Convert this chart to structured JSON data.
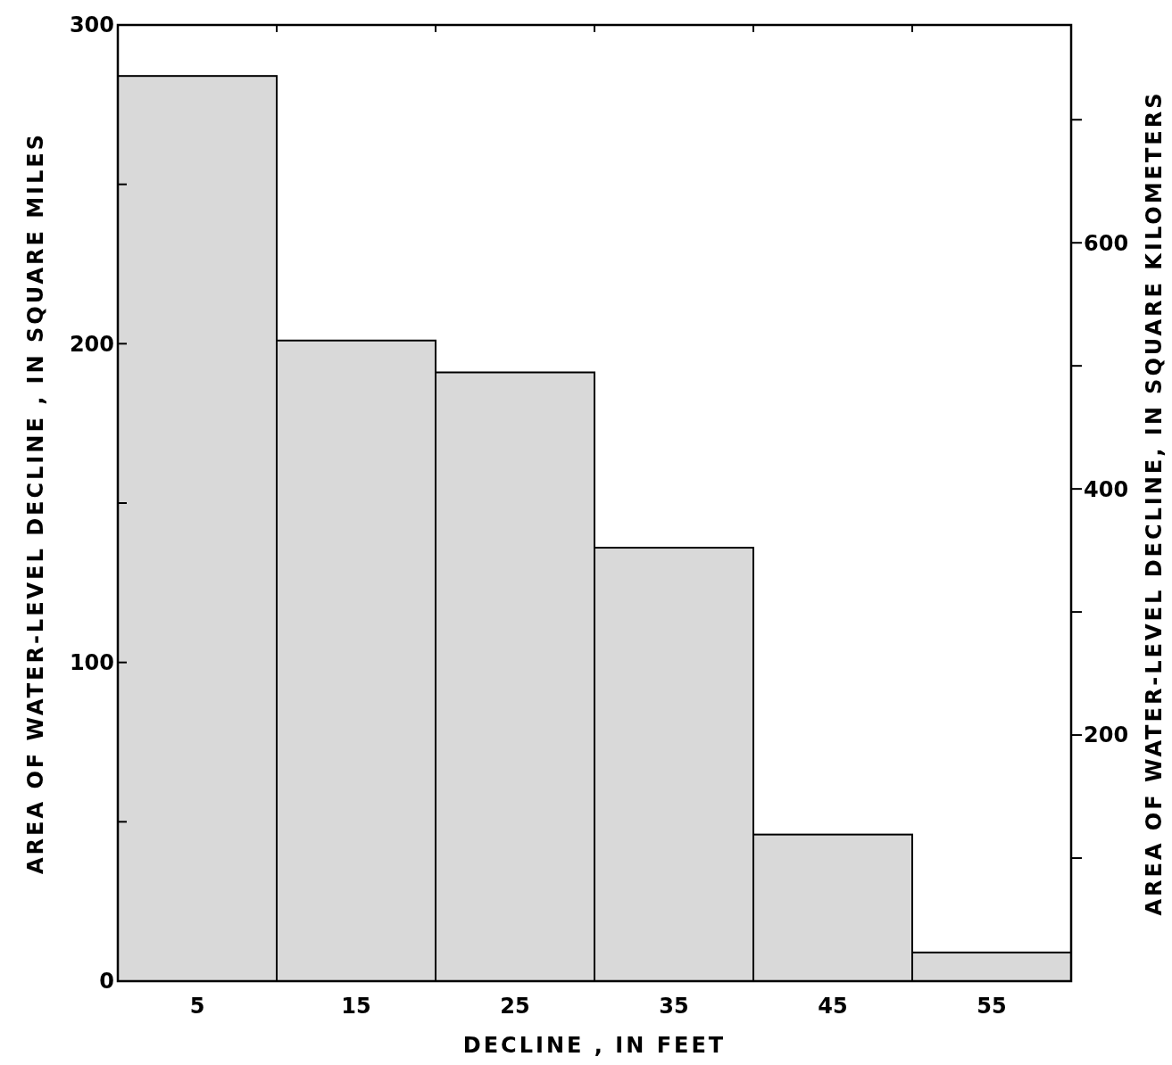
{
  "chart_data": {
    "type": "bar",
    "xlabel": "DECLINE , IN FEET",
    "ylabel": "AREA OF WATER-LEVEL DECLINE , IN SQUARE MILES",
    "y2label": "AREA OF WATER-LEVEL DECLINE, IN SQUARE KILOMETERS",
    "categories": [
      "5",
      "15",
      "25",
      "35",
      "45",
      "55"
    ],
    "series": [
      {
        "color": "#d9d9d9",
        "values": [
          284,
          201,
          191,
          136,
          46,
          9
        ]
      }
    ],
    "ylim": [
      0,
      300
    ],
    "yticks": [
      0,
      {
        "value": 50,
        "label": null
      },
      100,
      {
        "value": 150,
        "label": null
      },
      200,
      {
        "value": 250,
        "label": null
      },
      300
    ],
    "y2lim": [
      0,
      777
    ],
    "y2ticks": [
      {
        "value": 100,
        "label": null
      },
      200,
      {
        "value": 300,
        "label": null
      },
      {
        "value": 400,
        "label": "400"
      },
      {
        "value": 500,
        "label": null
      },
      {
        "value": 600,
        "label": "600"
      },
      {
        "value": 700,
        "label": null
      }
    ],
    "grid": false
  }
}
